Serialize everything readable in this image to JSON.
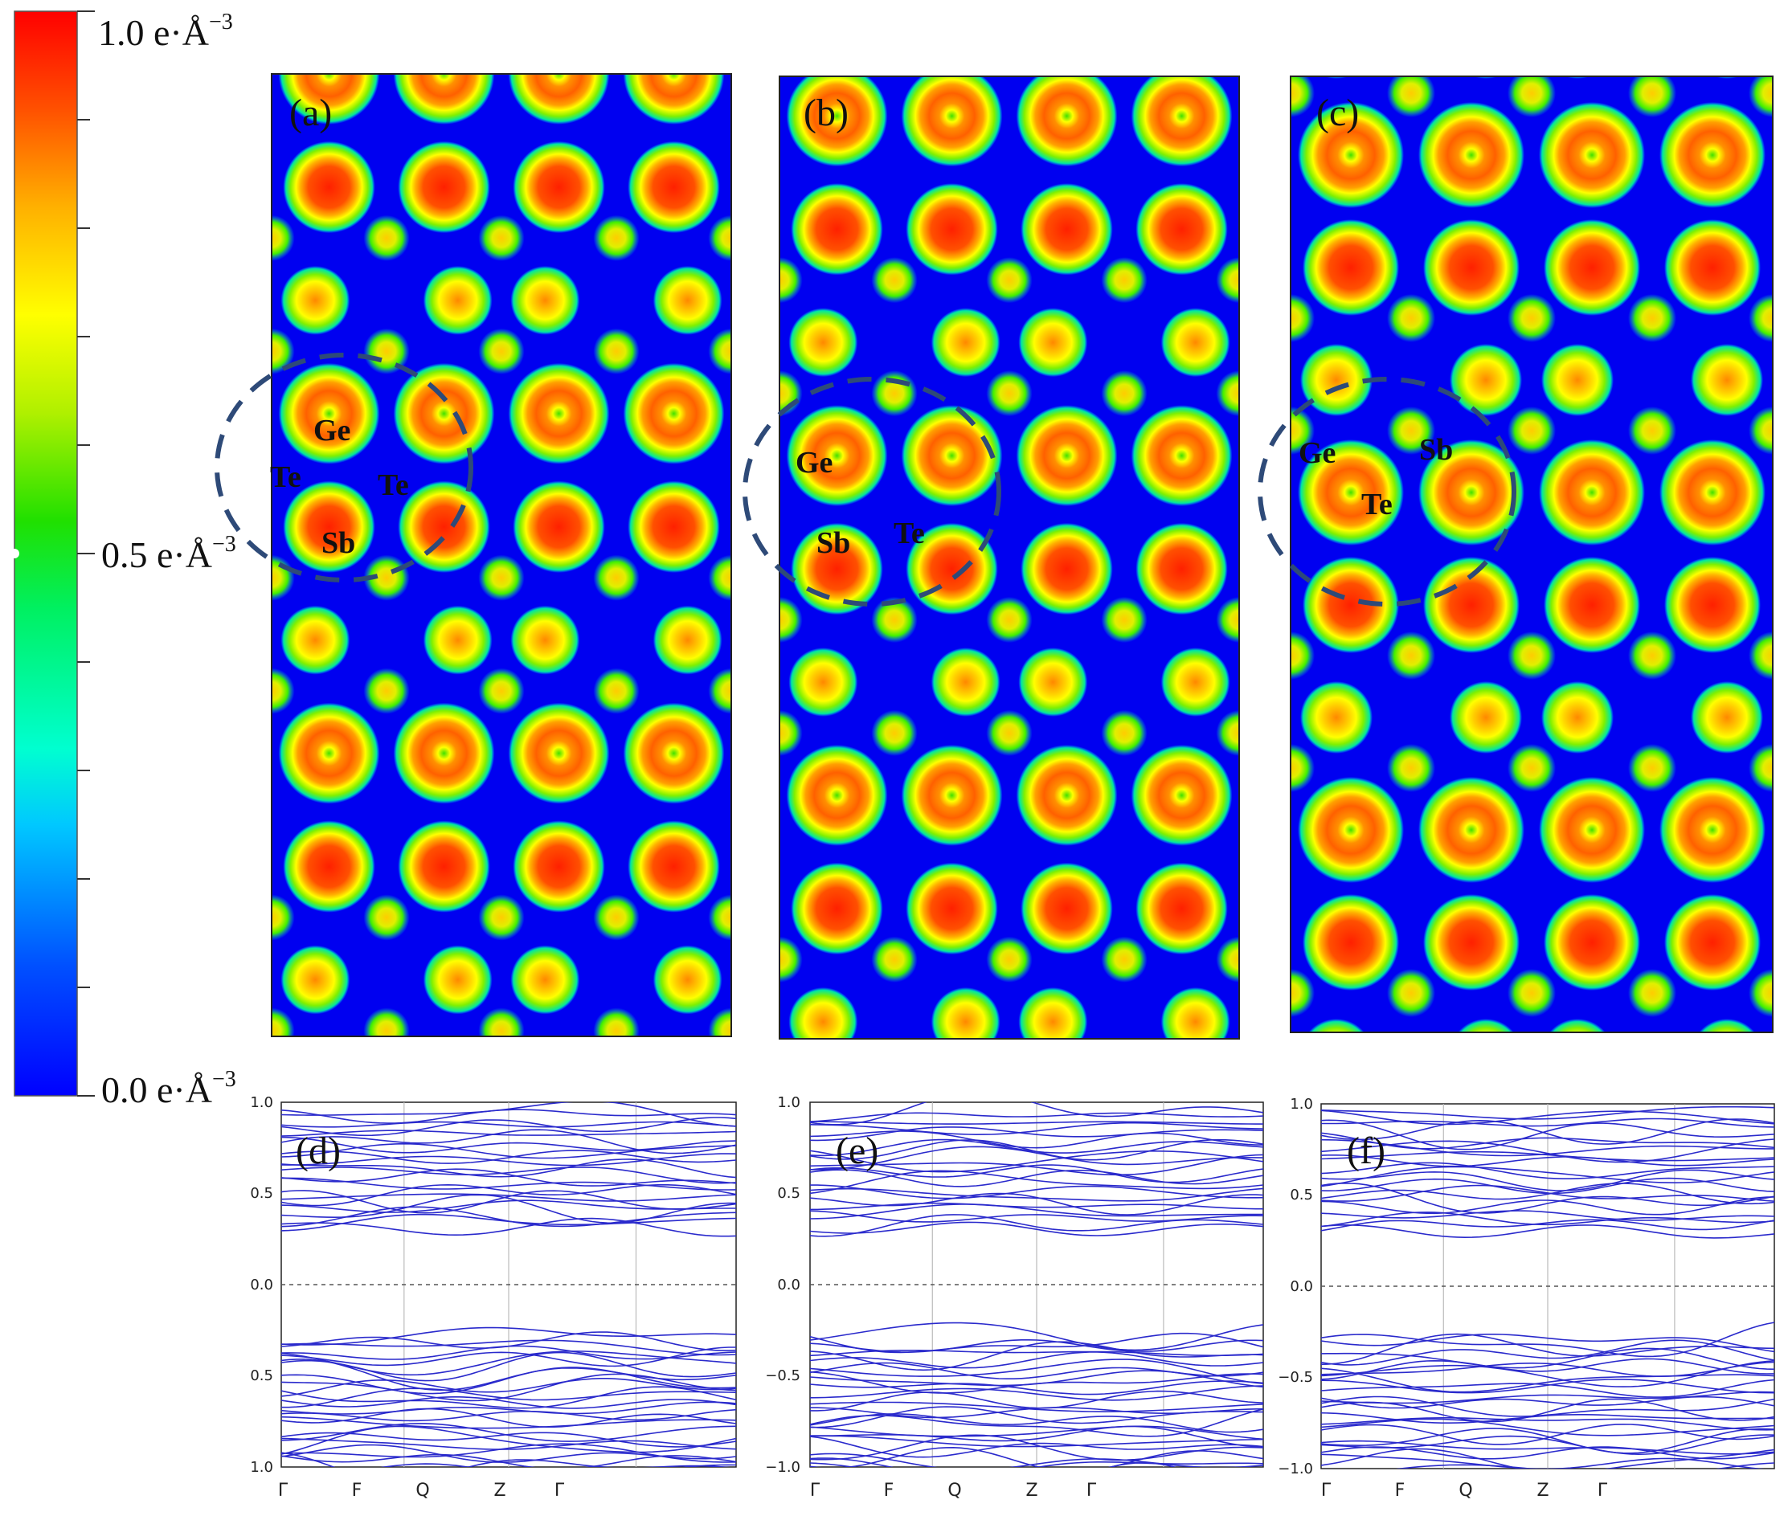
{
  "colorbar": {
    "max_label": "1.0 e·Å",
    "mid_label": "0.5 e·Å",
    "min_label": "0.0 e·Å",
    "exponent": "−3",
    "colors": [
      "#0000ff",
      "#0090ff",
      "#00ffff",
      "#00ff80",
      "#00e000",
      "#a0f000",
      "#ffff00",
      "#ffa000",
      "#ff5000",
      "#ff0000"
    ]
  },
  "density_panels": [
    {
      "label": "(a)",
      "atoms": [
        "Ge",
        "Te",
        "Te",
        "Sb"
      ]
    },
    {
      "label": "(b)",
      "atoms": [
        "Ge",
        "Sb",
        "Te"
      ]
    },
    {
      "label": "(c)",
      "atoms": [
        "Ge",
        "Sb",
        "Te"
      ]
    }
  ],
  "band_panels": [
    {
      "label": "(d)",
      "y_ticks": [
        "1.0",
        "0.5",
        "0.0",
        "0.5",
        "1.0"
      ]
    },
    {
      "label": "(e)",
      "y_ticks": [
        "1.0",
        "0.5",
        "0.0",
        "−0.5",
        "−1.0"
      ]
    },
    {
      "label": "(f)",
      "y_ticks": [
        "1.0",
        "0.5",
        "0.0",
        "−0.5",
        "−1.0"
      ]
    }
  ],
  "kpath": [
    "Γ",
    "F",
    "Q",
    "Z",
    "Γ"
  ],
  "style": {
    "band_color": "#2a2acc",
    "circle_color": "#2e4a78"
  }
}
